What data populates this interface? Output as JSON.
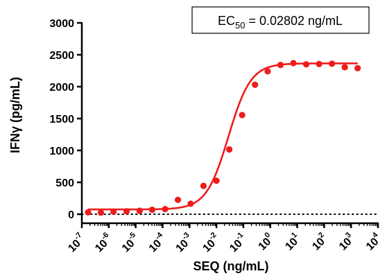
{
  "chart_data": {
    "type": "scatter",
    "xlabel": "SEQ (ng/mL)",
    "ylabel": "IFNγ (pg/mL)",
    "x_scale": "log",
    "xlim": [
      1e-07,
      10000.0
    ],
    "ylim": [
      0,
      3000
    ],
    "y_ticks": [
      0,
      500,
      1000,
      1500,
      2000,
      2500,
      3000
    ],
    "x_tick_exponents": [
      -7,
      -6,
      -5,
      -4,
      -3,
      -2,
      -1,
      0,
      1,
      2,
      3,
      4
    ],
    "x_tick_base": "10",
    "point_color": "#ee1c1c",
    "fit": {
      "model": "4PL",
      "bottom": 75,
      "top": 2365,
      "ec50": 0.02802,
      "hill": 1.05,
      "color": "#ee1c1c"
    },
    "reference_line": {
      "y": 0,
      "style": "dotted"
    },
    "annotation": {
      "prefix": "EC",
      "subscript": "50",
      "suffix": " = 0.02802 ng/mL"
    },
    "series": [
      {
        "x": [
          1.7e-07,
          5.1e-07,
          1.5e-06,
          4.6e-06,
          1.4e-05,
          4.1e-05,
          0.000124,
          0.00037,
          0.0011,
          0.0033,
          0.01,
          0.03,
          0.09,
          0.27,
          0.8,
          2.4,
          7.2,
          21.6,
          65,
          195,
          585,
          1755
        ],
        "y": [
          30,
          25,
          40,
          45,
          55,
          70,
          80,
          225,
          165,
          445,
          525,
          1015,
          1555,
          2030,
          2240,
          2340,
          2370,
          2350,
          2355,
          2360,
          2305,
          2290
        ]
      }
    ]
  }
}
